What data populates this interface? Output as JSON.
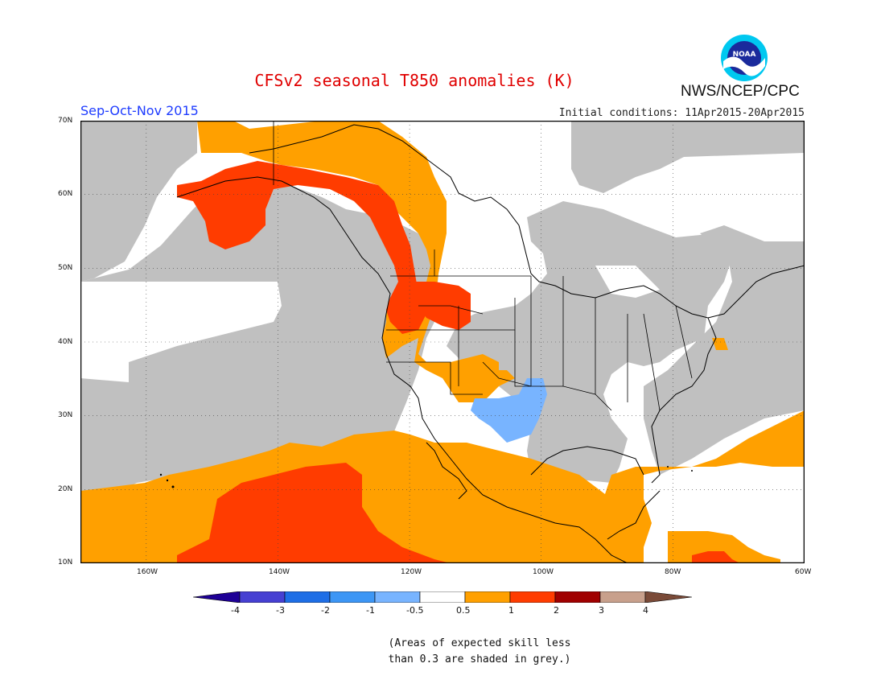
{
  "header": {
    "title": "CFSv2 seasonal T850 anomalies (K)",
    "season": "Sep-Oct-Nov 2015",
    "initial_conditions": "Initial conditions: 11Apr2015-20Apr2015",
    "agency": "NWS/NCEP/CPC",
    "logo_text": "NOAA"
  },
  "map": {
    "region": "North America",
    "lat_labels": [
      "70N",
      "60N",
      "50N",
      "40N",
      "30N",
      "20N",
      "10N"
    ],
    "lon_labels": [
      "160W",
      "140W",
      "120W",
      "100W",
      "80W",
      "60W"
    ],
    "colors": {
      "grey": "#c0c0c0",
      "orange": "#ffa000",
      "red": "#ff3c00",
      "lightblue": "#78b4ff",
      "white": "#ffffff"
    }
  },
  "colorbar": {
    "labels": [
      "-4",
      "-3",
      "-2",
      "-1",
      "-0.5",
      "0.5",
      "1",
      "2",
      "3",
      "4"
    ],
    "colors": [
      "#1e0096",
      "#4640d2",
      "#1e6ee6",
      "#3c96f5",
      "#78b4ff",
      "#ffffff",
      "#ffa000",
      "#ff3c00",
      "#a00000",
      "#c8a08c",
      "#7a4a38"
    ]
  },
  "note": {
    "line1": "(Areas of expected skill less",
    "line2": "than 0.3 are shaded in grey.)"
  }
}
